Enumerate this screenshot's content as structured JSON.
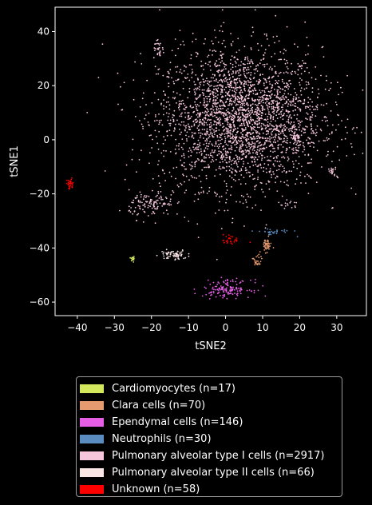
{
  "chart_data": {
    "type": "scatter",
    "title": "",
    "xlabel": "tSNE2",
    "ylabel": "tSNE1",
    "xlim": [
      -46,
      38
    ],
    "ylim": [
      -65,
      49
    ],
    "xticks": [
      -40,
      -30,
      -20,
      -10,
      0,
      10,
      20,
      30
    ],
    "yticks": [
      -60,
      -40,
      -20,
      0,
      20,
      40
    ],
    "grid": false,
    "legend_position": "bottom-outside",
    "background": "#000000",
    "series": [
      {
        "name": "Cardiomyocytes (n=17)",
        "color": "#d4e85e",
        "n": 17,
        "clusters": [
          {
            "cx": -25,
            "cy": -44,
            "sx": 0.3,
            "sy": 0.5,
            "n": 17
          }
        ]
      },
      {
        "name": "Clara cells (n=70)",
        "color": "#e59a6f",
        "n": 70,
        "clusters": [
          {
            "cx": 11,
            "cy": -39,
            "sx": 0.7,
            "sy": 1.2,
            "n": 45
          },
          {
            "cx": 8.5,
            "cy": -45,
            "sx": 0.6,
            "sy": 1.3,
            "n": 25
          }
        ]
      },
      {
        "name": "Ependymal cells (n=146)",
        "color": "#e55ee5",
        "n": 146,
        "clusters": [
          {
            "cx": 0.5,
            "cy": -55,
            "sx": 3.2,
            "sy": 1.6,
            "n": 146
          }
        ]
      },
      {
        "name": "Neutrophils (n=30)",
        "color": "#5b8cbf",
        "n": 30,
        "clusters": [
          {
            "cx": 13,
            "cy": -34,
            "sx": 2.5,
            "sy": 0.6,
            "n": 30
          }
        ]
      },
      {
        "name": "Pulmonary alveolar type I cells (n=2917)",
        "color": "#f5c6dc",
        "n": 2917,
        "clusters": [
          {
            "cx": 4,
            "cy": 8,
            "sx": 11,
            "sy": 13,
            "n": 2700
          },
          {
            "cx": -20,
            "cy": -24,
            "sx": 3,
            "sy": 2.5,
            "n": 120
          },
          {
            "cx": -18,
            "cy": 33,
            "sx": 0.8,
            "sy": 1.5,
            "n": 25
          },
          {
            "cx": 29,
            "cy": -12,
            "sx": 0.7,
            "sy": 1.2,
            "n": 20
          },
          {
            "cx": 17,
            "cy": -24,
            "sx": 1.5,
            "sy": 1,
            "n": 15
          },
          {
            "cx": 19,
            "cy": 0,
            "sx": 0.8,
            "sy": 1.5,
            "n": 37
          }
        ]
      },
      {
        "name": "Pulmonary alveolar type II cells (n=66)",
        "color": "#fbe6e6",
        "n": 66,
        "clusters": [
          {
            "cx": -14,
            "cy": -42.5,
            "sx": 1.8,
            "sy": 0.9,
            "n": 66
          }
        ]
      },
      {
        "name": "Unknown (n=58)",
        "color": "#ff0000",
        "n": 58,
        "clusters": [
          {
            "cx": -42,
            "cy": -16.5,
            "sx": 0.5,
            "sy": 1.0,
            "n": 30
          },
          {
            "cx": 1.5,
            "cy": -37,
            "sx": 1.2,
            "sy": 1.0,
            "n": 28
          }
        ]
      }
    ]
  }
}
